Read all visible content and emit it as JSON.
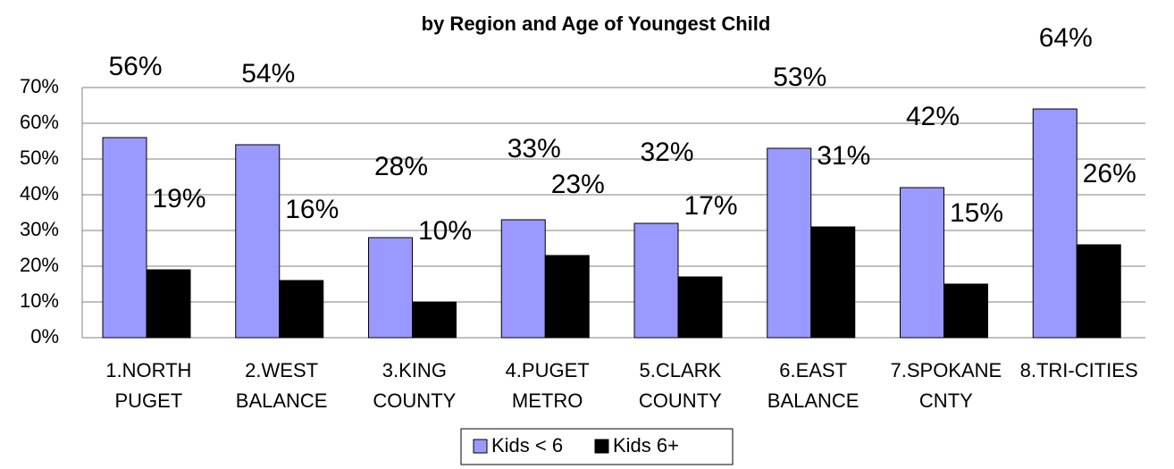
{
  "chart_data": {
    "type": "bar",
    "title": "by Region and Age of Youngest Child",
    "categories": [
      [
        "1.NORTH",
        "PUGET"
      ],
      [
        "2.WEST",
        "BALANCE"
      ],
      [
        "3.KING",
        "COUNTY"
      ],
      [
        "4.PUGET",
        "METRO"
      ],
      [
        "5.CLARK",
        "COUNTY"
      ],
      [
        "6.EAST",
        "BALANCE"
      ],
      [
        "7.SPOKANE",
        "CNTY"
      ],
      [
        "8.TRI-CITIES"
      ]
    ],
    "series": [
      {
        "name": "Kids < 6",
        "color": "#9999ff",
        "values": [
          56,
          54,
          28,
          33,
          32,
          53,
          42,
          64
        ],
        "value_labels": [
          "56%",
          "54%",
          "28%",
          "33%",
          "32%",
          "53%",
          "42%",
          "64%"
        ]
      },
      {
        "name": "Kids 6+",
        "color": "#000000",
        "values": [
          19,
          16,
          10,
          23,
          17,
          31,
          15,
          26
        ],
        "value_labels": [
          "19%",
          "16%",
          "10%",
          "23%",
          "17%",
          "31%",
          "15%",
          "26%"
        ]
      }
    ],
    "ylim": [
      0,
      70
    ],
    "yticks": [
      {
        "value": 0,
        "label": "0%"
      },
      {
        "value": 10,
        "label": "10%"
      },
      {
        "value": 20,
        "label": "20%"
      },
      {
        "value": 30,
        "label": "30%"
      },
      {
        "value": 40,
        "label": "40%"
      },
      {
        "value": 50,
        "label": "50%"
      },
      {
        "value": 60,
        "label": "60%"
      },
      {
        "value": 70,
        "label": "70%"
      }
    ],
    "grid": true
  }
}
